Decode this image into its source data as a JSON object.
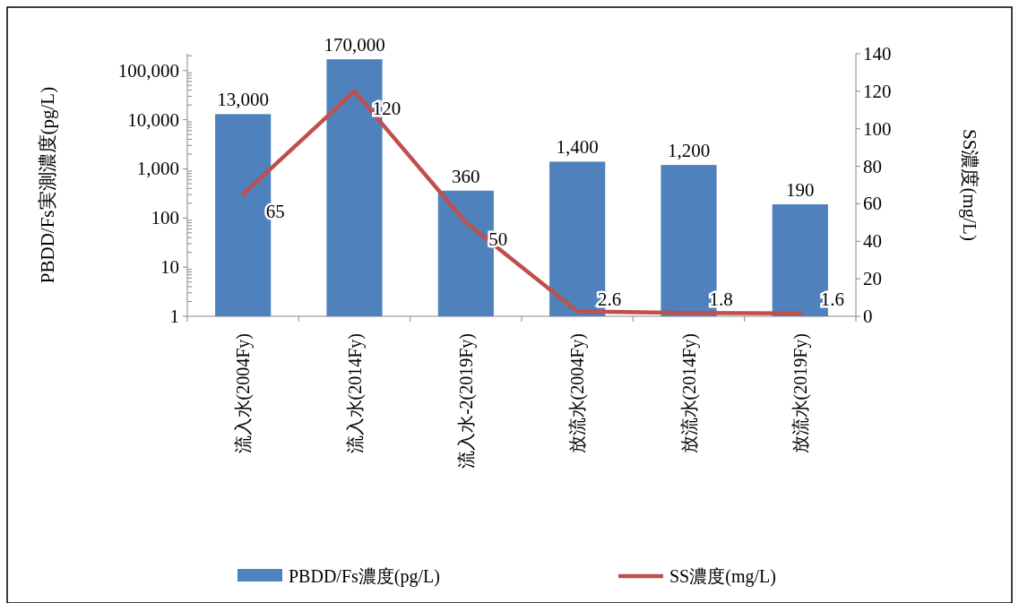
{
  "chart_data": {
    "type": "bar",
    "categories": [
      "流入水(2004Fy)",
      "流入水(2014Fy)",
      "流入水-2(2019Fy)",
      "放流水(2004Fy)",
      "放流水(2014Fy)",
      "放流水(2019Fy)"
    ],
    "series": [
      {
        "name": "PBDD/Fs濃度(pg/L)",
        "color": "#4f81bd",
        "values": [
          13000,
          170000,
          360,
          1400,
          1200,
          190
        ],
        "value_labels": [
          "13,000",
          "170,000",
          "360",
          "1,400",
          "1,200",
          "190"
        ]
      },
      {
        "name": "SS濃度(mg/L)",
        "type": "line",
        "axis": "y2",
        "color": "#c0504d",
        "values": [
          65,
          120,
          50,
          2.6,
          1.8,
          1.6
        ],
        "value_labels": [
          "65",
          "120",
          "50",
          "2.6",
          "1.8",
          "1.6"
        ]
      }
    ],
    "ylabel": "PBDD/Fs実測濃度(pg/L)",
    "y2label": "SS濃度(mg/L)",
    "log": "y",
    "ylim": [
      1,
      220000
    ],
    "yticks": [
      1,
      10,
      {
        "value": 100,
        "label": "100"
      },
      {
        "value": 1000,
        "label": "1,000"
      },
      {
        "value": 10000,
        "label": "10,000"
      },
      {
        "value": 100000,
        "label": "100,000"
      }
    ],
    "y2lim": [
      0,
      140
    ],
    "y2ticks": [
      0,
      20,
      40,
      60,
      80,
      100,
      120,
      140
    ],
    "legend": "bottom",
    "grid": false
  }
}
